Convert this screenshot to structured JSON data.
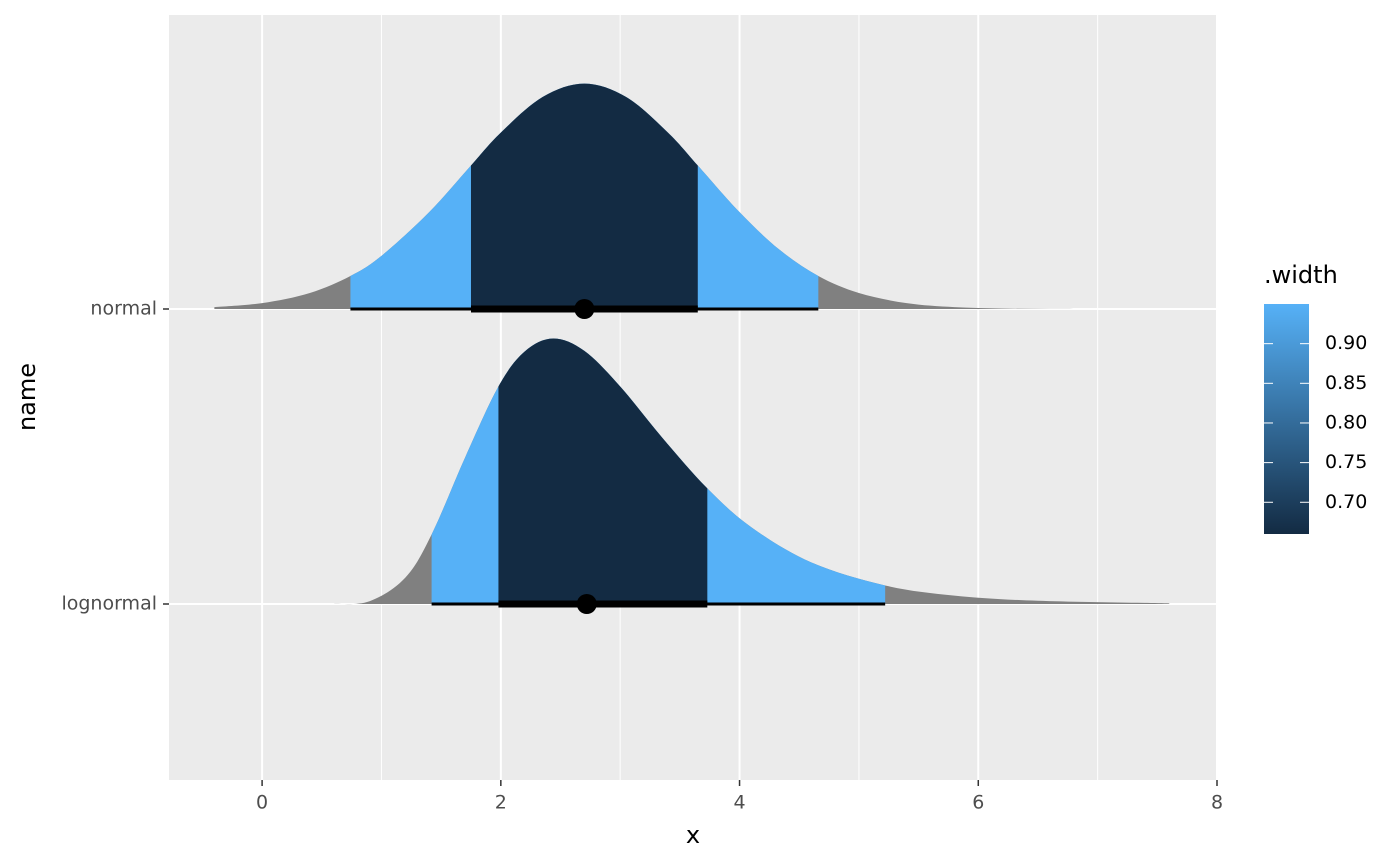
{
  "chart_data": {
    "type": "halfeye",
    "x_label": "x",
    "y_label": "name",
    "categories": [
      "normal",
      "lognormal"
    ],
    "xlim": [
      -0.78,
      8.0
    ],
    "xticks": [
      0,
      2,
      4,
      6,
      8
    ],
    "grid": true,
    "slab_color": "#808080",
    "interval_color": "#000000",
    "slabs": [
      {
        "x": [
          -0.4,
          0,
          0.4,
          0.74,
          1.0,
          1.4,
          1.75,
          2.0,
          2.35,
          2.7,
          3.05,
          3.4,
          3.65,
          4.0,
          4.33,
          4.66,
          5.0,
          5.4,
          5.8,
          6.2,
          6.6,
          7.0
        ],
        "density": [
          0.0033,
          0.0104,
          0.0283,
          0.0584,
          0.094,
          0.1714,
          0.2541,
          0.3123,
          0.3752,
          0.3989,
          0.3752,
          0.3123,
          0.2541,
          0.1714,
          0.1057,
          0.0584,
          0.0283,
          0.0104,
          0.0033,
          0.0009,
          0.0002,
          4e-05
        ],
        "point": 2.7,
        "intervals": [
          {
            "width": 0.95,
            "lower": 0.74,
            "upper": 4.66
          },
          {
            "width": 0.66,
            "lower": 1.75,
            "upper": 3.65
          }
        ]
      },
      {
        "x": [
          0.6,
          0.9,
          1.2,
          1.42,
          1.7,
          1.98,
          2.2,
          2.44,
          2.7,
          3.0,
          3.35,
          3.73,
          4.1,
          4.6,
          5.22,
          5.8,
          6.5,
          7.6
        ],
        "density": [
          0.0001,
          0.0049,
          0.0467,
          0.1231,
          0.259,
          0.385,
          0.447,
          0.47,
          0.448,
          0.385,
          0.295,
          0.2047,
          0.1357,
          0.0737,
          0.0328,
          0.0149,
          0.0057,
          0.0012
        ],
        "point": 2.72,
        "intervals": [
          {
            "width": 0.95,
            "lower": 1.42,
            "upper": 5.22
          },
          {
            "width": 0.66,
            "lower": 1.98,
            "upper": 3.73
          }
        ]
      }
    ],
    "color_scale": {
      "title": ".width",
      "lim": [
        0.66,
        0.95
      ],
      "ticks": [
        {
          "value": 0.7,
          "label": "0.70"
        },
        0.75,
        {
          "value": 0.8,
          "label": "0.80"
        },
        0.85,
        {
          "value": 0.9,
          "label": "0.90"
        }
      ],
      "low": "#132B43",
      "high": "#56B1F7"
    }
  }
}
